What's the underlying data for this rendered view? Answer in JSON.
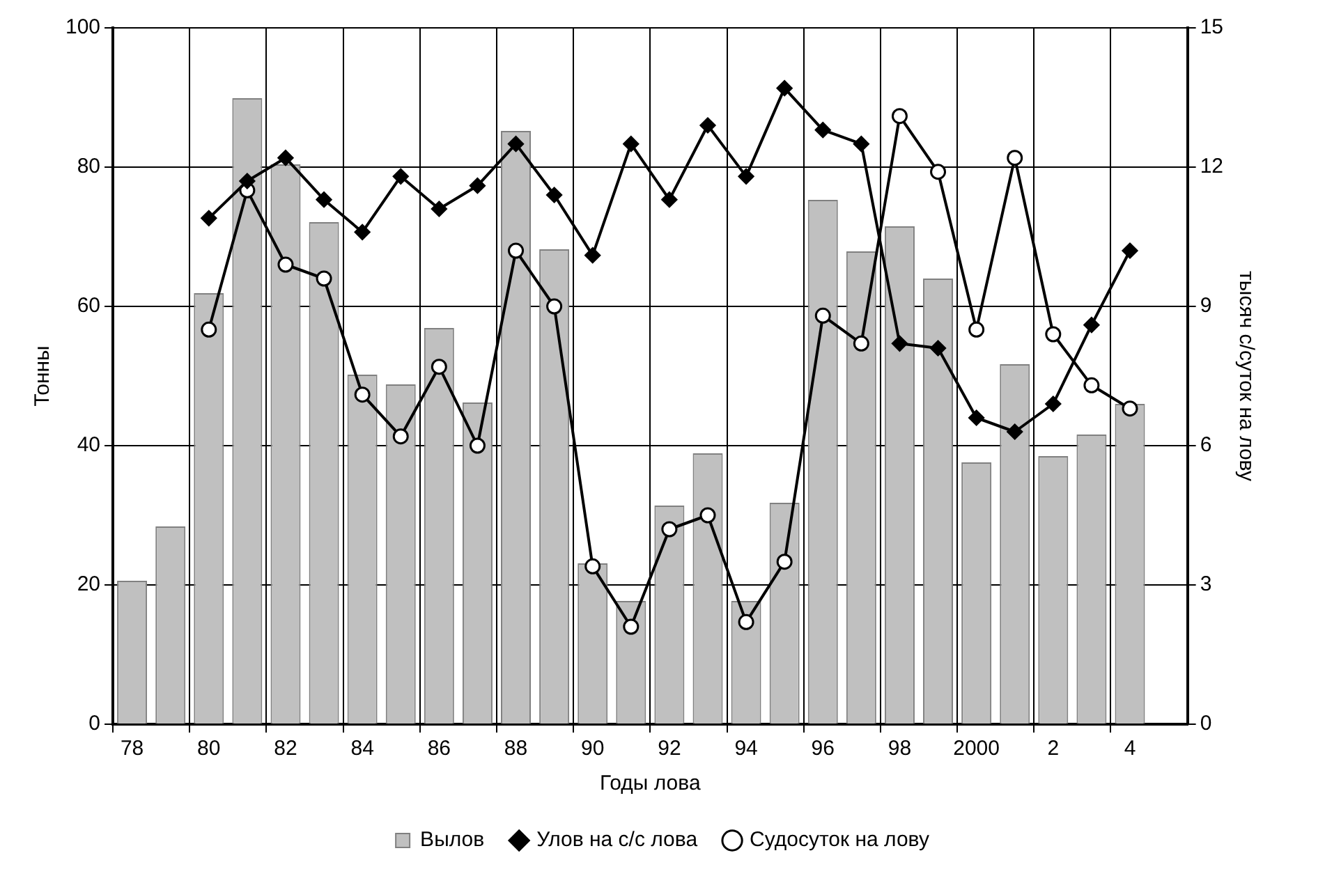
{
  "chart_data": {
    "type": "bar",
    "xlabel": "Годы лова",
    "ylabel": "Тонны",
    "y2label": "тысяч с/суток на лову",
    "categories": [
      "78",
      null,
      "80",
      null,
      "82",
      null,
      "84",
      null,
      "86",
      null,
      "88",
      null,
      "90",
      null,
      "92",
      null,
      "94",
      null,
      "96",
      null,
      "98",
      null,
      "2000",
      null,
      "2",
      null,
      "4",
      null
    ],
    "series": [
      {
        "name": "Вылов",
        "color": "#c0c0c0",
        "values": [
          20.6,
          28.4,
          61.9,
          89.9,
          80.4,
          72.1,
          50.2,
          48.8,
          56.9,
          46.2,
          85.2,
          68.2,
          23.1,
          17.7,
          31.4,
          38.9,
          17.7,
          31.8,
          75.3,
          67.9,
          71.5,
          64.0,
          37.6,
          51.7,
          38.5,
          41.6,
          46.0,
          null
        ]
      },
      {
        "name": "Улов на с/с лова",
        "type": "line",
        "axis": "y2",
        "marker": "diamond",
        "color": "#000000",
        "values": [
          null,
          null,
          10.9,
          11.7,
          12.2,
          11.3,
          10.6,
          11.8,
          11.1,
          11.6,
          12.5,
          11.4,
          10.1,
          12.5,
          11.3,
          12.9,
          11.8,
          13.7,
          12.8,
          12.5,
          8.2,
          8.1,
          6.6,
          6.3,
          6.9,
          8.6,
          10.2,
          null
        ]
      },
      {
        "name": "Судосуток на лову",
        "type": "line",
        "axis": "y2",
        "marker": "circle",
        "color": "#000000",
        "values": [
          null,
          null,
          8.5,
          11.5,
          9.9,
          9.6,
          7.1,
          6.2,
          7.7,
          6.0,
          10.2,
          9.0,
          3.4,
          2.1,
          4.2,
          4.5,
          2.2,
          3.5,
          8.8,
          8.2,
          13.1,
          11.9,
          8.5,
          12.2,
          8.4,
          7.3,
          6.8,
          null
        ]
      }
    ],
    "ylim": [
      0,
      100
    ],
    "yticks": [
      0,
      20,
      40,
      60,
      80,
      100
    ],
    "y2lim": [
      0,
      15
    ],
    "y2ticks": [
      0,
      3,
      6,
      9,
      12,
      15
    ],
    "grid": true,
    "legend": "bottom"
  }
}
